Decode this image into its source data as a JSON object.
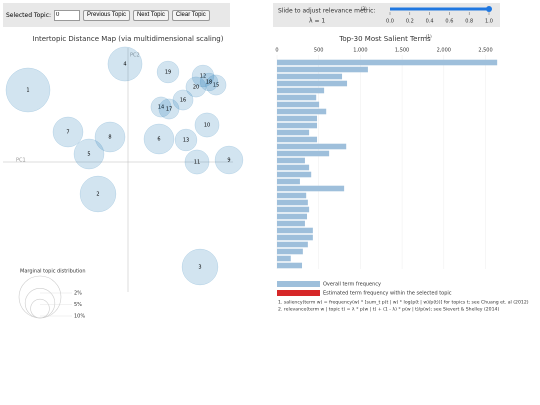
{
  "controls": {
    "topic_label": "Selected Topic:",
    "topic_value": "0",
    "buttons": [
      "Previous Topic",
      "Next Topic",
      "Clear Topic"
    ],
    "slider": {
      "label": "Slide to adjust relevance metric:",
      "note": "(2)",
      "lambda": "λ = 1",
      "value": 1,
      "range": [
        0,
        1
      ],
      "ticks": [
        {
          "value": 0,
          "label": "0.0"
        },
        {
          "value": 0.2,
          "label": "0.2"
        },
        {
          "value": 0.4,
          "label": "0.4"
        },
        {
          "value": 0.6,
          "label": "0.6"
        },
        {
          "value": 0.8,
          "label": "0.8"
        },
        {
          "value": 1,
          "label": "1.0"
        }
      ]
    }
  },
  "chart_data": [
    {
      "type": "bubble",
      "title": "Intertopic Distance Map (via multidimensional scaling)",
      "x_label": "PC1",
      "y_label": "PC2",
      "color": "#1f77b4",
      "xlim": [
        -125,
        105
      ],
      "ylim": [
        -130,
        125
      ],
      "labels": [
        "1",
        "2",
        "3",
        "4",
        "5",
        "6",
        "7",
        "8",
        "9",
        "10",
        "11",
        "12",
        "13",
        "14",
        "15",
        "16",
        "17",
        "18",
        "19",
        "20"
      ],
      "x": [
        -100,
        -30,
        72,
        -3,
        -39,
        31,
        -60,
        -18,
        101,
        79,
        69,
        75,
        58,
        33,
        88,
        55,
        41,
        81,
        40,
        68
      ],
      "y": [
        72,
        -32,
        -105,
        98,
        8,
        23,
        30,
        25,
        2,
        37,
        0,
        86,
        22,
        55,
        77,
        62,
        53,
        80,
        90,
        75
      ],
      "sizes": [
        11,
        7.3,
        7.3,
        6.6,
        5.1,
        5.1,
        5.1,
        5.1,
        4.4,
        3.3,
        3.3,
        2.7,
        2.7,
        2.3,
        2.3,
        2.3,
        2.3,
        1.8,
        2.7,
        2.3
      ],
      "size_legend": {
        "title": "Marginal topic distribution",
        "values": [
          {
            "value": 2,
            "label": "2%"
          },
          {
            "value": 5,
            "label": "5%"
          },
          {
            "value": 10,
            "label": "10%"
          }
        ]
      }
    },
    {
      "type": "barh",
      "title": "Top-30 Most Salient Terms",
      "title_note": "(1)",
      "color": "#9ebfdb",
      "categories": [
        null,
        null,
        null,
        null,
        null,
        null,
        null,
        null,
        null,
        null,
        null,
        null,
        null,
        null,
        null,
        null,
        null,
        null,
        null,
        null,
        null,
        null,
        null,
        null,
        null,
        null,
        null,
        null,
        null,
        null
      ],
      "values": [
        2640,
        1090,
        780,
        840,
        565,
        470,
        505,
        590,
        480,
        480,
        385,
        480,
        830,
        625,
        335,
        385,
        410,
        275,
        805,
        350,
        370,
        385,
        360,
        335,
        430,
        430,
        370,
        310,
        165,
        300
      ],
      "xlim": [
        0,
        2650
      ],
      "xticks": [
        0,
        500,
        {
          "value": 1000,
          "label": "1,000"
        },
        {
          "value": 1500,
          "label": "1,500"
        },
        {
          "value": 2000,
          "label": "2,000"
        },
        {
          "value": 2500,
          "label": "2,500"
        }
      ],
      "legend": [
        {
          "name": "Overall term frequency",
          "color": "#9ebfdb"
        },
        {
          "name": "Estimated term frequency within the selected topic",
          "color": "#d62728"
        }
      ],
      "footnotes": [
        "1. saliency(term w) = frequency(w) * [sum_t p(t | w) * log(p(t | w)/p(t))] for topics t; see Chuang et. al (2012)",
        "2. relevance(term w | topic t) = λ * p(w | t) + (1 - λ) * p(w | t)/p(w); see Sievert & Shelley (2014)"
      ]
    }
  ]
}
